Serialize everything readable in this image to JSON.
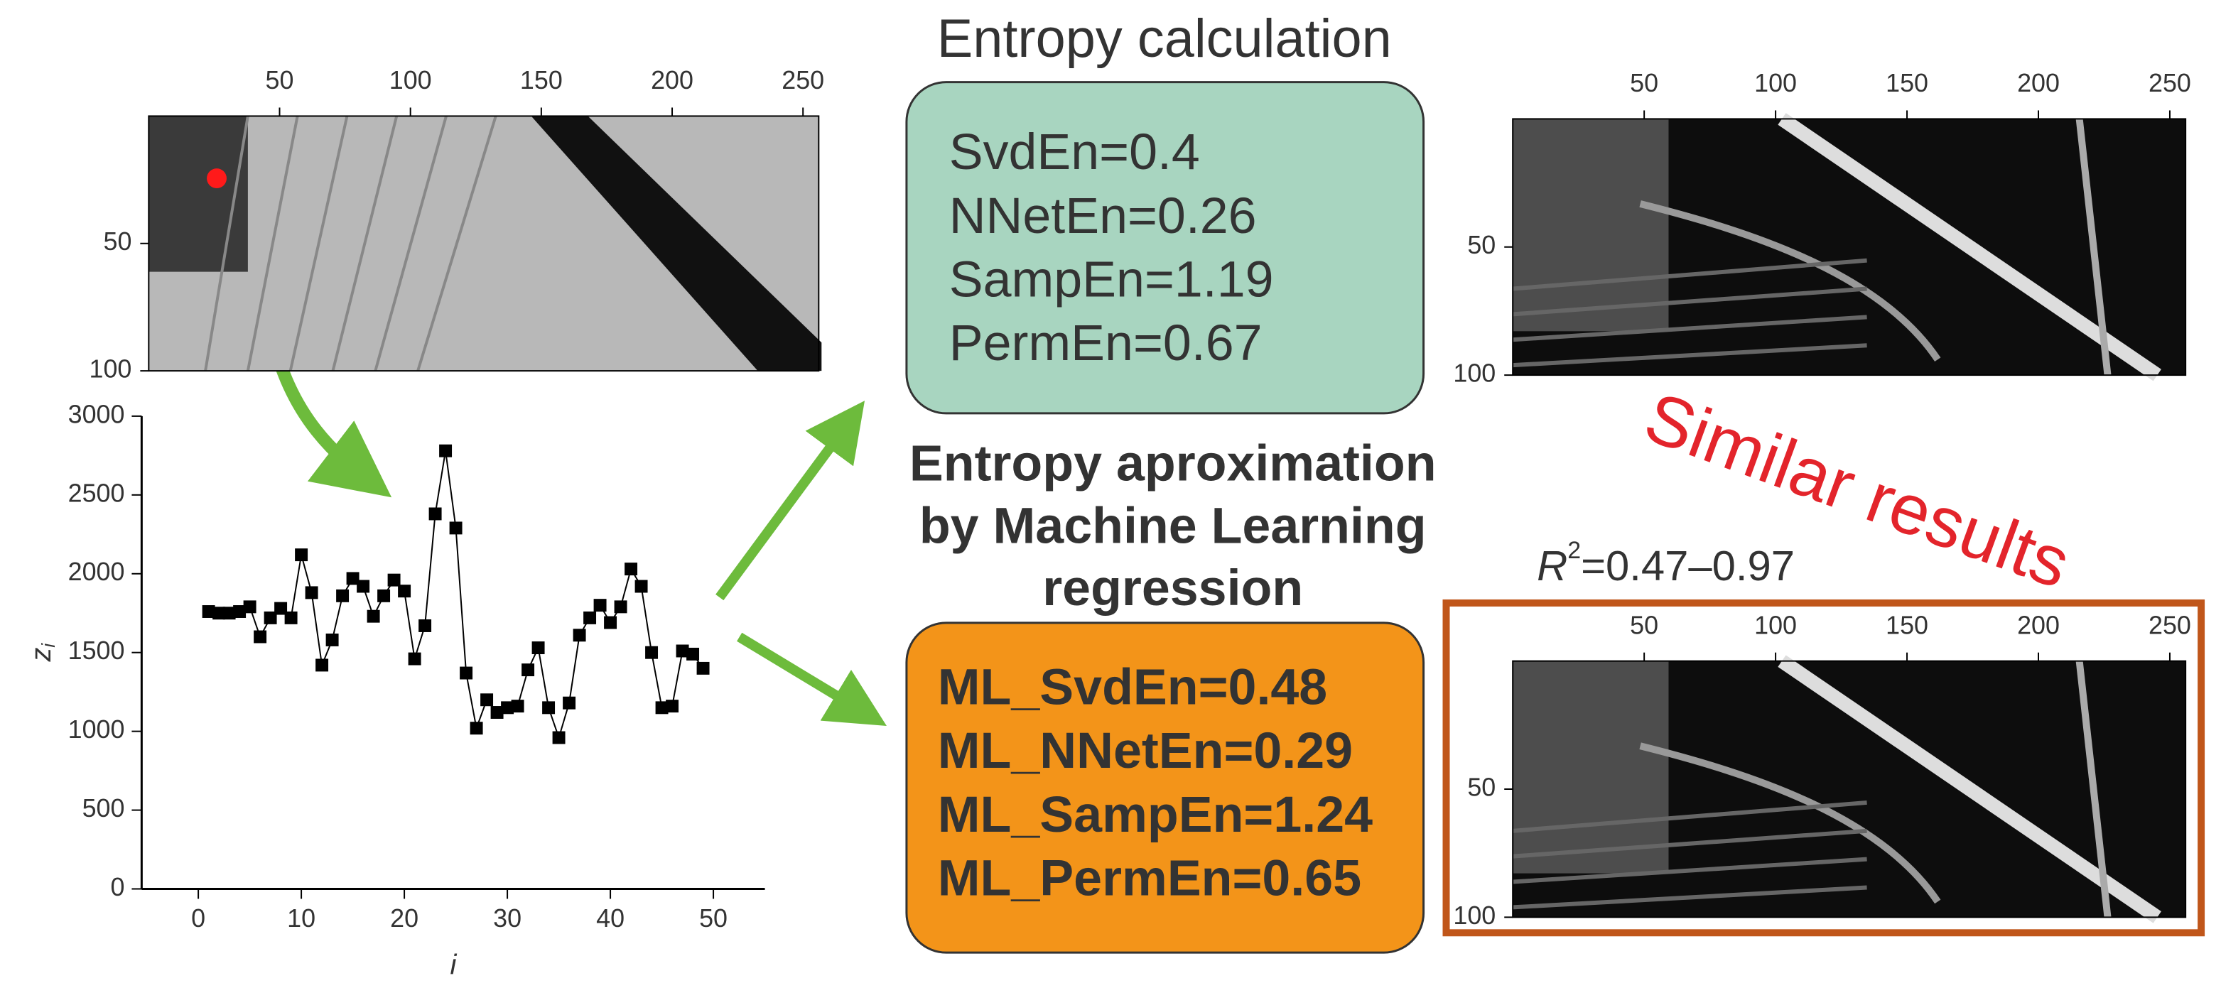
{
  "title": "Entropy calculation",
  "entropy_box": {
    "lines": [
      "SvdEn=0.4",
      "NNetEn=0.26",
      "SampEn=1.19",
      "PermEn=0.67"
    ]
  },
  "ml_title": {
    "lines": [
      "Entropy aproximation",
      "by Machine Learning",
      "regression"
    ]
  },
  "ml_box": {
    "lines": [
      "ML_SvdEn=0.48",
      "ML_NNetEn=0.29",
      "ML_SampEn=1.24",
      "ML_PermEn=0.65"
    ]
  },
  "similar": "Similar results",
  "r2": {
    "base": "R",
    "sup": "2",
    "text": "=0.47–0.97"
  },
  "panels": [
    {
      "xlim": [
        0,
        256
      ],
      "ylim": [
        0,
        100
      ],
      "xticks": [
        50,
        100,
        150,
        200,
        250
      ],
      "yticks": [
        50,
        100
      ]
    },
    {
      "xlim": [
        0,
        256
      ],
      "ylim": [
        0,
        100
      ],
      "xticks": [
        50,
        100,
        150,
        200,
        250
      ],
      "yticks": [
        50,
        100
      ]
    },
    {
      "xlim": [
        0,
        256
      ],
      "ylim": [
        0,
        100
      ],
      "xticks": [
        50,
        100,
        150,
        200,
        250
      ],
      "yticks": [
        50,
        100
      ]
    }
  ],
  "chart_data": {
    "type": "line",
    "color": "#000000",
    "xlabel": "i",
    "ylabel": {
      "base": "z",
      "sub": "i"
    },
    "x": [
      1,
      2,
      3,
      4,
      5,
      6,
      7,
      8,
      9,
      10,
      11,
      12,
      13,
      14,
      15,
      16,
      17,
      18,
      19,
      20,
      21,
      22,
      23,
      24,
      25,
      26,
      27,
      28,
      29,
      30,
      31,
      32,
      33,
      34,
      35,
      36,
      37,
      38,
      39,
      40,
      41,
      42,
      43,
      44,
      45,
      46,
      47,
      48,
      49
    ],
    "values": [
      1760,
      1750,
      1750,
      1760,
      1790,
      1600,
      1720,
      1780,
      1720,
      2120,
      1880,
      1420,
      1580,
      1860,
      1970,
      1920,
      1730,
      1860,
      1960,
      1890,
      1460,
      1670,
      2380,
      2780,
      2290,
      1370,
      1020,
      1200,
      1120,
      1150,
      1160,
      1390,
      1530,
      1150,
      960,
      1180,
      1610,
      1720,
      1800,
      1690,
      1790,
      2030,
      1920,
      1500,
      1150,
      1160,
      1510,
      1490,
      1400
    ],
    "xlim": [
      -5.5,
      55
    ],
    "ylim": [
      0,
      3000
    ],
    "xticks": [
      0,
      10,
      20,
      30,
      40,
      50
    ],
    "yticks": [
      0,
      500,
      1000,
      1500,
      2000,
      2500,
      3000
    ]
  }
}
